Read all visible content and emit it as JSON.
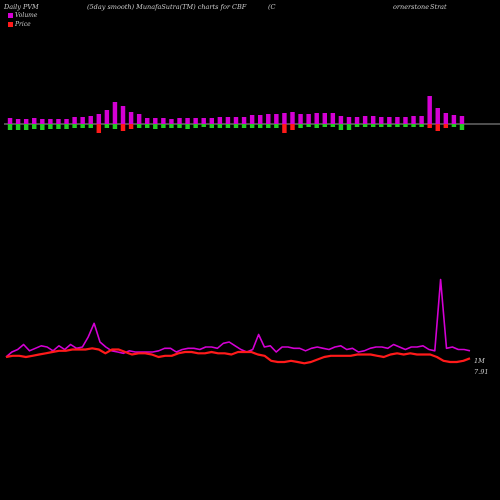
{
  "header": {
    "left": "Daily PVM",
    "center": "(5day smooth) MunafaSutra(TM) charts for CBF",
    "paren": "(C",
    "right_a": "ornerstone",
    "right_b": "Strat"
  },
  "chart_data": [
    {
      "type": "bar",
      "description_series": "volume bars (oscillating above/below a baseline)",
      "colors": {
        "up": "#d400d4",
        "down": "#ff1a1a",
        "neg": "#22cc22",
        "baseline": "#cfcfcf"
      },
      "bars": [
        {
          "up": 6,
          "down": 6,
          "color": "neg"
        },
        {
          "up": 5,
          "down": 6,
          "color": "neg"
        },
        {
          "up": 5,
          "down": 6,
          "color": "neg"
        },
        {
          "up": 6,
          "down": 5,
          "color": "neg"
        },
        {
          "up": 5,
          "down": 6,
          "color": "neg"
        },
        {
          "up": 5,
          "down": 5,
          "color": "neg"
        },
        {
          "up": 5,
          "down": 5,
          "color": "neg"
        },
        {
          "up": 5,
          "down": 5,
          "color": "neg"
        },
        {
          "up": 7,
          "down": 4,
          "color": "neg"
        },
        {
          "up": 7,
          "down": 4,
          "color": "neg"
        },
        {
          "up": 8,
          "down": 4,
          "color": "neg"
        },
        {
          "up": 10,
          "down": 9,
          "color": "down"
        },
        {
          "up": 14,
          "down": 4,
          "color": "neg"
        },
        {
          "up": 22,
          "down": 5,
          "color": "neg"
        },
        {
          "up": 18,
          "down": 7,
          "color": "down"
        },
        {
          "up": 12,
          "down": 5,
          "color": "down"
        },
        {
          "up": 10,
          "down": 4,
          "color": "neg"
        },
        {
          "up": 6,
          "down": 4,
          "color": "neg"
        },
        {
          "up": 6,
          "down": 5,
          "color": "neg"
        },
        {
          "up": 6,
          "down": 4,
          "color": "neg"
        },
        {
          "up": 5,
          "down": 4,
          "color": "neg"
        },
        {
          "up": 6,
          "down": 4,
          "color": "neg"
        },
        {
          "up": 6,
          "down": 5,
          "color": "neg"
        },
        {
          "up": 6,
          "down": 4,
          "color": "neg"
        },
        {
          "up": 6,
          "down": 3,
          "color": "neg"
        },
        {
          "up": 6,
          "down": 4,
          "color": "neg"
        },
        {
          "up": 7,
          "down": 4,
          "color": "neg"
        },
        {
          "up": 7,
          "down": 4,
          "color": "neg"
        },
        {
          "up": 7,
          "down": 4,
          "color": "neg"
        },
        {
          "up": 7,
          "down": 4,
          "color": "neg"
        },
        {
          "up": 9,
          "down": 4,
          "color": "neg"
        },
        {
          "up": 9,
          "down": 4,
          "color": "neg"
        },
        {
          "up": 10,
          "down": 4,
          "color": "neg"
        },
        {
          "up": 10,
          "down": 4,
          "color": "neg"
        },
        {
          "up": 11,
          "down": 9,
          "color": "down"
        },
        {
          "up": 12,
          "down": 6,
          "color": "down"
        },
        {
          "up": 10,
          "down": 4,
          "color": "neg"
        },
        {
          "up": 10,
          "down": 3,
          "color": "neg"
        },
        {
          "up": 11,
          "down": 4,
          "color": "neg"
        },
        {
          "up": 11,
          "down": 3,
          "color": "neg"
        },
        {
          "up": 11,
          "down": 3,
          "color": "neg"
        },
        {
          "up": 8,
          "down": 6,
          "color": "neg"
        },
        {
          "up": 7,
          "down": 6,
          "color": "neg"
        },
        {
          "up": 7,
          "down": 3,
          "color": "neg"
        },
        {
          "up": 8,
          "down": 3,
          "color": "neg"
        },
        {
          "up": 8,
          "down": 3,
          "color": "neg"
        },
        {
          "up": 7,
          "down": 3,
          "color": "neg"
        },
        {
          "up": 7,
          "down": 3,
          "color": "neg"
        },
        {
          "up": 7,
          "down": 3,
          "color": "neg"
        },
        {
          "up": 7,
          "down": 3,
          "color": "neg"
        },
        {
          "up": 8,
          "down": 3,
          "color": "neg"
        },
        {
          "up": 8,
          "down": 3,
          "color": "neg"
        },
        {
          "up": 28,
          "down": 4,
          "color": "down"
        },
        {
          "up": 16,
          "down": 7,
          "color": "down"
        },
        {
          "up": 11,
          "down": 4,
          "color": "down"
        },
        {
          "up": 9,
          "down": 3,
          "color": "neg"
        },
        {
          "up": 8,
          "down": 6,
          "color": "neg"
        }
      ]
    },
    {
      "type": "line",
      "series": [
        {
          "name": "Volume",
          "color": "#d400d4",
          "end_label": "1M",
          "values": [
            28,
            32,
            34,
            38,
            33,
            35,
            37,
            36,
            33,
            37,
            34,
            38,
            35,
            36,
            44,
            55,
            40,
            36,
            33,
            32,
            31,
            33,
            32,
            32,
            32,
            32,
            33,
            35,
            35,
            32,
            34,
            35,
            35,
            34,
            36,
            36,
            35,
            39,
            40,
            37,
            34,
            32,
            34,
            46,
            36,
            37,
            32,
            36,
            36,
            35,
            35,
            33,
            35,
            36,
            35,
            34,
            36,
            37,
            34,
            35,
            32,
            33,
            35,
            36,
            36,
            35,
            38,
            36,
            34,
            36,
            36,
            37,
            34,
            33,
            90,
            35,
            36,
            34,
            34,
            33
          ]
        },
        {
          "name": "Price",
          "color": "#ff1a1a",
          "end_label": "7.91",
          "values": [
            28,
            29,
            29,
            28,
            29,
            30,
            31,
            32,
            33,
            33,
            34,
            34,
            34,
            35,
            34,
            31,
            34,
            34,
            32,
            30,
            31,
            31,
            30,
            28,
            29,
            29,
            31,
            32,
            32,
            31,
            31,
            32,
            31,
            31,
            30,
            32,
            32,
            32,
            30,
            29,
            25,
            24,
            24,
            25,
            24,
            23,
            24,
            26,
            28,
            29,
            29,
            29,
            29,
            30,
            30,
            30,
            29,
            28,
            30,
            31,
            30,
            31,
            30,
            30,
            30,
            28,
            25,
            24,
            24,
            25,
            27
          ]
        }
      ]
    }
  ]
}
